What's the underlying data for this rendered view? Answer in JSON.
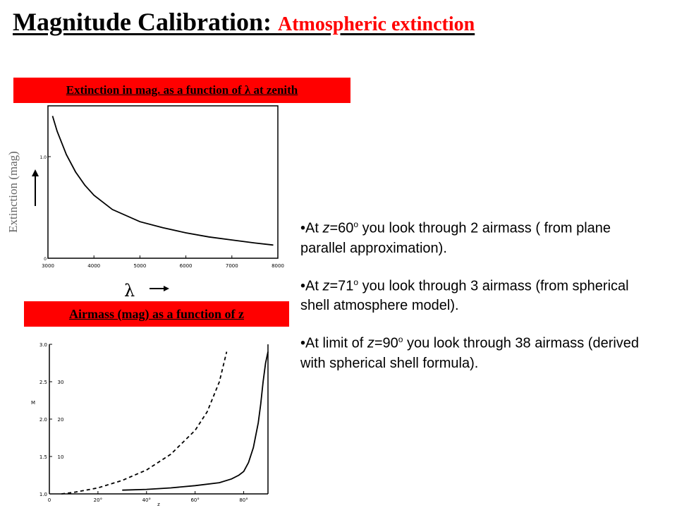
{
  "title": {
    "main": "Magnitude Calibration: ",
    "sub": "Atmospheric extinction "
  },
  "label_top": "Extinction in mag. as a function of λ at zenith",
  "label_bottom": "Airmass (mag) as a function of z",
  "chart1_ylabel": "Extinction (mag)",
  "chart1_xsymbol": "λ",
  "bullets": [
    {
      "pre": "At ",
      "var": "z",
      "eq": "=60",
      "sup": "o",
      "post": " you look through 2 airmass ( from plane parallel approximation)."
    },
    {
      "pre": "At ",
      "var": "z",
      "eq": "=71",
      "sup": "o",
      "post": " you look through 3 airmass (from spherical shell atmosphere model)."
    },
    {
      "pre": "At limit of ",
      "var": "z",
      "eq": "=90",
      "sup": "o",
      "post": " you look through 38 airmass (derived with spherical shell formula)."
    }
  ],
  "chart_data": [
    {
      "type": "line",
      "title": "",
      "xlabel": "",
      "ylabel": "",
      "xlim": [
        3000,
        8000
      ],
      "xticks": [
        "3000",
        "4000",
        "5000",
        "6000",
        "7000",
        "8000"
      ],
      "yticks": [
        "0",
        "1.0"
      ],
      "series": [
        {
          "x": [
            3100,
            3200,
            3400,
            3600,
            3800,
            4000,
            4400,
            5000,
            5500,
            6000,
            6500,
            7000,
            7500,
            7900
          ],
          "values": [
            1.4,
            1.25,
            1.02,
            0.85,
            0.72,
            0.62,
            0.48,
            0.36,
            0.3,
            0.25,
            0.21,
            0.18,
            0.15,
            0.13
          ]
        }
      ]
    },
    {
      "type": "line",
      "title": "",
      "xlabel": "z",
      "ylabel": "M",
      "xlim": [
        0,
        90
      ],
      "ylim": [
        1.0,
        3.0
      ],
      "xticks": [
        "0",
        "20°",
        "40°",
        "60°",
        "80°"
      ],
      "yticks": [
        "1.0",
        "1.5",
        "2.0",
        "2.5",
        "3.0"
      ],
      "yticks_right": [
        "10",
        "20",
        "30"
      ],
      "series": [
        {
          "style": "solid",
          "x": [
            30,
            40,
            50,
            60,
            70,
            75,
            78,
            80,
            82,
            84,
            86,
            87,
            88,
            89,
            90
          ],
          "values": [
            1.05,
            1.06,
            1.08,
            1.11,
            1.15,
            1.2,
            1.25,
            1.3,
            1.42,
            1.62,
            1.95,
            2.2,
            2.5,
            2.75,
            2.9
          ]
        },
        {
          "style": "dashed",
          "x": [
            5,
            10,
            20,
            30,
            40,
            50,
            60,
            65,
            70,
            73
          ],
          "values": [
            1.0,
            1.02,
            1.08,
            1.18,
            1.32,
            1.53,
            1.85,
            2.1,
            2.5,
            2.9
          ]
        }
      ]
    }
  ]
}
